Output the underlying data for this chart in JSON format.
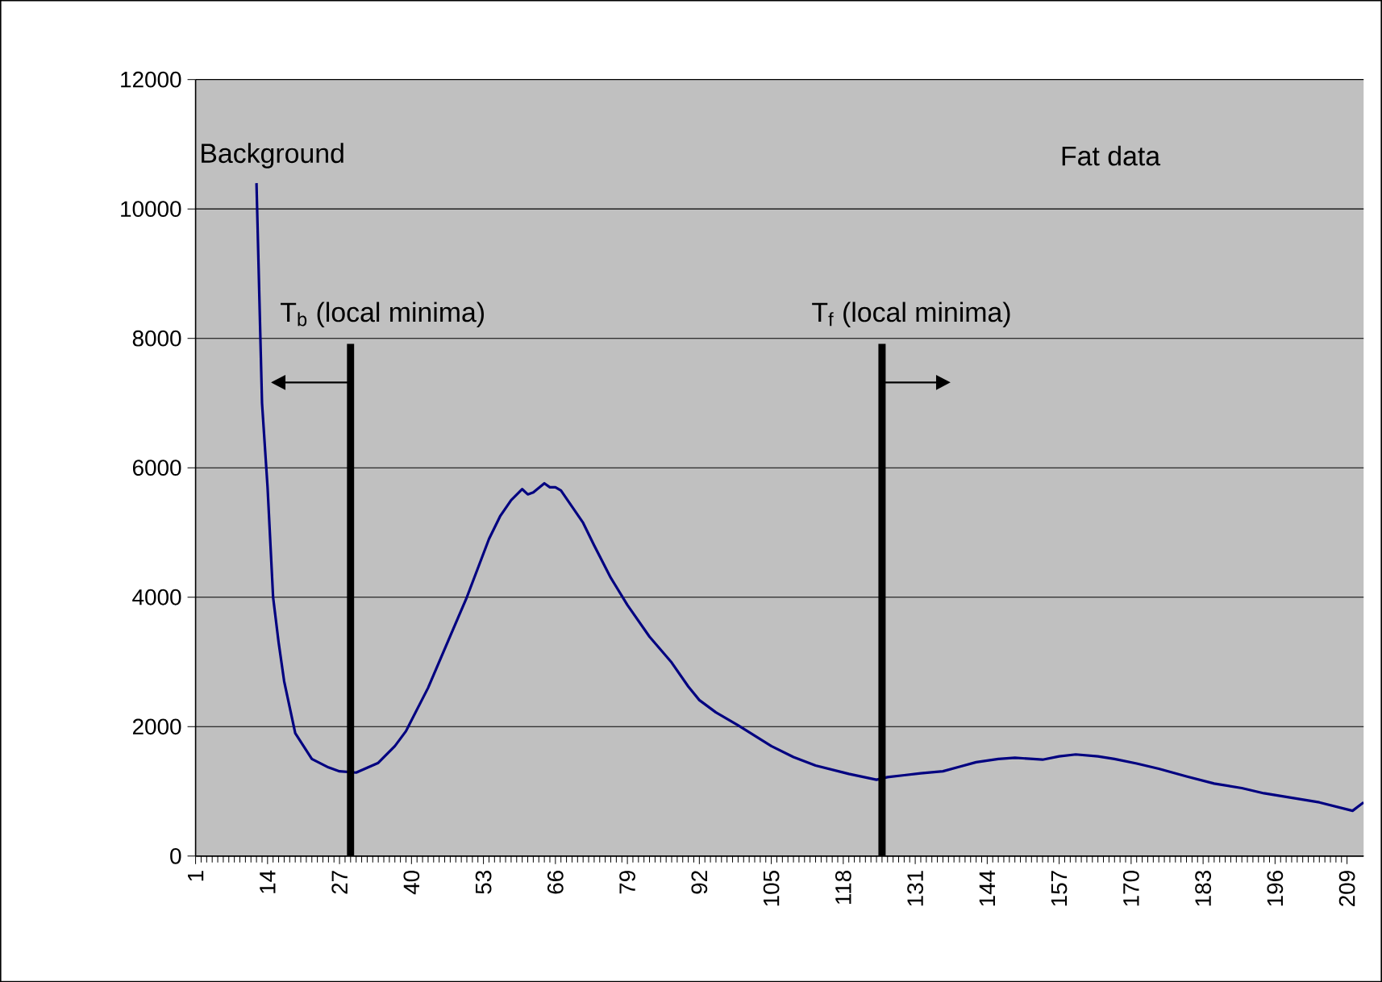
{
  "chart_data": {
    "type": "line",
    "x": [
      12,
      13,
      14,
      15,
      16,
      17,
      19,
      22,
      25,
      27,
      30,
      34,
      37,
      39,
      43,
      47,
      50,
      54,
      56,
      58,
      60,
      61,
      62,
      64,
      65,
      66,
      67,
      69,
      71,
      73,
      76,
      79,
      83,
      87,
      90,
      92,
      95,
      99,
      105,
      109,
      113,
      119,
      124,
      126,
      129,
      132,
      136,
      139,
      142,
      146,
      149,
      154,
      157,
      160,
      164,
      167,
      171,
      175,
      180,
      185,
      190,
      194,
      199,
      204,
      210,
      212
    ],
    "series": [
      {
        "color": "#000080",
        "values": [
          10400,
          7000,
          5700,
          4000,
          3300,
          2700,
          1900,
          1500,
          1370,
          1310,
          1290,
          1440,
          1700,
          1930,
          2600,
          3400,
          4000,
          4900,
          5250,
          5500,
          5670,
          5590,
          5620,
          5760,
          5700,
          5700,
          5650,
          5400,
          5150,
          4800,
          4300,
          3880,
          3390,
          2990,
          2620,
          2410,
          2220,
          2020,
          1700,
          1530,
          1400,
          1270,
          1180,
          1220,
          1250,
          1280,
          1310,
          1380,
          1450,
          1500,
          1520,
          1490,
          1540,
          1570,
          1540,
          1500,
          1430,
          1350,
          1230,
          1120,
          1050,
          970,
          900,
          830,
          700,
          830
        ]
      }
    ],
    "xlim": [
      1,
      212
    ],
    "xticks": [
      1,
      14,
      27,
      40,
      53,
      66,
      79,
      92,
      105,
      118,
      131,
      144,
      157,
      170,
      183,
      196,
      209
    ],
    "ylim": [
      0,
      12000
    ],
    "yticks": [
      0,
      2000,
      4000,
      6000,
      8000,
      10000,
      12000
    ],
    "grid": "y",
    "ref_lines": [
      {
        "axis": "x",
        "value": 29,
        "label": "T$_{b}$  (local minima)",
        "color": "#000000"
      },
      {
        "axis": "x",
        "value": 125,
        "label": "T$_{f}$  (local minima)",
        "color": "#000000"
      }
    ],
    "annotations": [
      "Background",
      "Fat data"
    ]
  }
}
